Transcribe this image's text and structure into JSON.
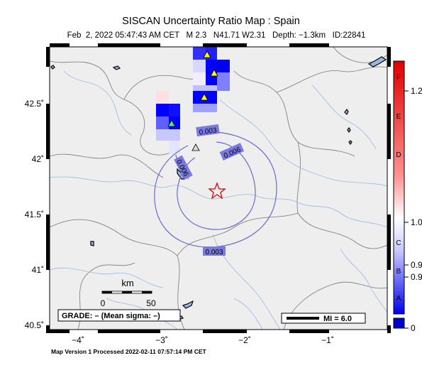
{
  "header": {
    "title": "SISCAN Uncertainty Ratio Map : Spain",
    "subtitle": "Feb  2, 2022 05:47:43 AM CET   M 2.3   N41.71 W2.31   Depth: −1.3km   ID:22841"
  },
  "map": {
    "lat_ticks": [
      "42.5˚",
      "42˚",
      "41.5˚",
      "41˚",
      "40.5˚"
    ],
    "lon_ticks": [
      "−4˚",
      "−3˚",
      "−2˚",
      "−1˚"
    ],
    "contours": [
      "0.003",
      "0.006",
      "0.003",
      "0.006"
    ],
    "scale_bar": {
      "unit": "km",
      "start": "0",
      "end": "50"
    },
    "grade_box": "GRADE: – (Mean sigma: –)",
    "mi_legend": "MI = 6.0",
    "epicenter": {
      "lat": 41.71,
      "lon": -2.31
    }
  },
  "colorbar": {
    "letters": [
      "F",
      "E",
      "D",
      "C",
      "B",
      "A"
    ],
    "values": [
      "1.2",
      "1.0",
      "0.9",
      "0.9",
      "0"
    ],
    "colors": {
      "high": "#ff0000",
      "mid": "#ffffff",
      "low": "#0000ff",
      "nodata": "#0000cc"
    }
  },
  "footer": "Map Version 1 Processed 2022-02-11 07:57:14 PM CET"
}
